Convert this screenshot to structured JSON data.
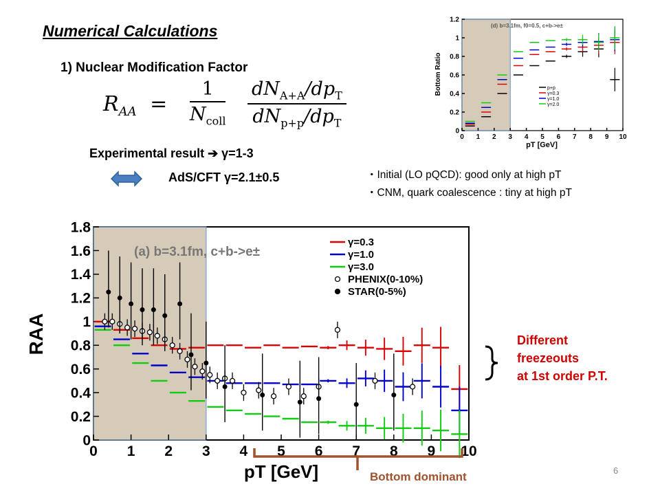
{
  "slide": {
    "title": "Numerical Calculations",
    "subtitle": "1) Nuclear Modification Factor",
    "formula": {
      "lhs": "R",
      "lhs_sub": "AA",
      "eq": "=",
      "frac1_num": "1",
      "frac1_den": "N",
      "frac1_den_sub": "coll",
      "frac2_num_a": "dN",
      "frac2_num_sub": "A+A",
      "frac2_num_b": "/dp",
      "frac2_num_b_sub": "T",
      "frac2_den_a": "dN",
      "frac2_den_sub": "p+p",
      "frac2_den_b": "/dp",
      "frac2_den_b_sub": "T"
    },
    "experimental": "Experimental result ➔ γ=1-3",
    "ads": "AdS/CFT γ=2.1±0.5",
    "bullets": [
      "・Initial (LO pQCD): good only at high pT",
      "・CNM, quark coalescence : tiny at high pT"
    ],
    "right_note": [
      "Different",
      "freezeouts",
      "at 1st order P.T."
    ],
    "bottom_note": "Bottom dominant",
    "page_number": "6",
    "colors": {
      "red": "#dd0000",
      "blue": "#0000cc",
      "green": "#11cc11",
      "brace": "#a0522d"
    }
  },
  "chart_data": [
    {
      "type": "line",
      "panel_label": "(a) b=3.1fm, c+b->e±",
      "xlabel": "pT [GeV]",
      "ylabel": "RAA",
      "xlim": [
        0,
        10
      ],
      "ylim": [
        0,
        1.8
      ],
      "xticks": [
        "0",
        "1",
        "2",
        "3",
        "4",
        "5",
        "6",
        "7",
        "8",
        "9",
        "10"
      ],
      "yticks": [
        "0",
        "0.2",
        "0.4",
        "0.6",
        "0.8",
        "1",
        "1.2",
        "1.4",
        "1.6",
        "1.8"
      ],
      "legend": [
        "γ=0.3",
        "γ=1.0",
        "γ=3.0",
        "PHENIX(0-10%)",
        "STAR(0-5%)"
      ],
      "series": [
        {
          "name": "γ=0.3",
          "color": "#dd0000",
          "x": [
            0.25,
            0.75,
            1.25,
            1.75,
            2.25,
            2.75,
            3.25,
            3.75,
            4.25,
            4.75,
            5.25,
            5.75,
            6.25,
            6.75,
            7.25,
            7.75,
            8.25,
            8.75,
            9.25,
            9.75
          ],
          "y": [
            1.0,
            0.93,
            0.86,
            0.8,
            0.77,
            0.78,
            0.8,
            0.8,
            0.78,
            0.8,
            0.78,
            0.79,
            0.78,
            0.8,
            0.78,
            0.77,
            0.75,
            0.8,
            0.78,
            0.43
          ]
        },
        {
          "name": "γ=1.0",
          "color": "#0000cc",
          "x": [
            0.25,
            0.75,
            1.25,
            1.75,
            2.25,
            2.75,
            3.25,
            3.75,
            4.25,
            4.75,
            5.25,
            5.75,
            6.25,
            6.75,
            7.25,
            7.75,
            8.25,
            8.75,
            9.25,
            9.75
          ],
          "y": [
            0.96,
            0.85,
            0.73,
            0.63,
            0.57,
            0.53,
            0.5,
            0.48,
            0.48,
            0.48,
            0.47,
            0.47,
            0.5,
            0.48,
            0.52,
            0.5,
            0.45,
            0.5,
            0.45,
            0.25
          ]
        },
        {
          "name": "γ=3.0",
          "color": "#11cc11",
          "x": [
            0.25,
            0.75,
            1.25,
            1.75,
            2.25,
            2.75,
            3.25,
            3.75,
            4.25,
            4.75,
            5.25,
            5.75,
            6.25,
            6.75,
            7.25,
            7.75,
            8.25,
            8.75,
            9.25,
            9.75
          ],
          "y": [
            0.93,
            0.8,
            0.65,
            0.5,
            0.4,
            0.33,
            0.28,
            0.25,
            0.22,
            0.2,
            0.18,
            0.15,
            0.15,
            0.12,
            0.12,
            0.1,
            0.1,
            0.1,
            0.08,
            0.05
          ]
        }
      ],
      "phenix": {
        "x": [
          0.3,
          0.5,
          0.7,
          0.9,
          1.1,
          1.3,
          1.5,
          1.7,
          1.9,
          2.1,
          2.3,
          2.5,
          2.7,
          2.9,
          3.1,
          3.3,
          3.5,
          3.7,
          4.0,
          4.4,
          4.8,
          5.2,
          5.6,
          6.0,
          6.5,
          7.5,
          8.5
        ],
        "y": [
          1.0,
          1.0,
          0.98,
          0.95,
          0.94,
          0.92,
          0.91,
          0.88,
          0.85,
          0.8,
          0.75,
          0.68,
          0.62,
          0.58,
          0.55,
          0.5,
          0.52,
          0.5,
          0.4,
          0.42,
          0.37,
          0.45,
          0.37,
          0.45,
          0.93,
          0.5,
          0.45
        ]
      },
      "star": {
        "x": [
          0.4,
          0.7,
          1.0,
          1.3,
          1.6,
          1.9,
          2.3,
          2.6,
          3.0,
          3.5,
          4.5,
          5.5,
          6.0,
          7.0,
          8.0
        ],
        "y": [
          1.25,
          1.2,
          1.15,
          1.1,
          1.1,
          1.05,
          1.15,
          0.72,
          0.65,
          0.45,
          0.38,
          0.32,
          0.35,
          0.3,
          0.38
        ]
      }
    },
    {
      "type": "line",
      "panel_label": "(d) b=3.1fm, f0=0.5, c+b->e±",
      "xlabel": "pT [GeV]",
      "ylabel": "Bottom Ratio",
      "xlim": [
        0,
        10
      ],
      "ylim": [
        0,
        1.2
      ],
      "xticks": [
        "0",
        "1",
        "2",
        "3",
        "4",
        "5",
        "6",
        "7",
        "8",
        "9",
        "10"
      ],
      "yticks": [
        "0",
        "0.2",
        "0.4",
        "0.6",
        "0.8",
        "1",
        "1.2"
      ],
      "legend": [
        "p+p",
        "γ=0.3",
        "γ=1.0",
        "γ=2.0"
      ],
      "series": [
        {
          "name": "p+p",
          "color": "#000000",
          "x": [
            0.5,
            1.5,
            2.5,
            3.5,
            4.5,
            5.5,
            6.5,
            7.5,
            8.5,
            9.5
          ],
          "y": [
            0.05,
            0.15,
            0.4,
            0.6,
            0.7,
            0.75,
            0.8,
            0.85,
            0.88,
            0.55
          ]
        },
        {
          "name": "γ=0.3",
          "color": "#dd0000",
          "x": [
            0.5,
            1.5,
            2.5,
            3.5,
            4.5,
            5.5,
            6.5,
            7.5,
            8.5,
            9.5
          ],
          "y": [
            0.07,
            0.2,
            0.5,
            0.7,
            0.82,
            0.85,
            0.88,
            0.9,
            0.92,
            0.95
          ]
        },
        {
          "name": "γ=1.0",
          "color": "#0000cc",
          "x": [
            0.5,
            1.5,
            2.5,
            3.5,
            4.5,
            5.5,
            6.5,
            7.5,
            8.5,
            9.5
          ],
          "y": [
            0.08,
            0.25,
            0.55,
            0.78,
            0.87,
            0.9,
            0.93,
            0.95,
            0.96,
            0.98
          ]
        },
        {
          "name": "γ=2.0",
          "color": "#11cc11",
          "x": [
            0.5,
            1.5,
            2.5,
            3.5,
            4.5,
            5.5,
            6.5,
            7.5,
            8.5,
            9.5
          ],
          "y": [
            0.1,
            0.3,
            0.6,
            0.85,
            0.95,
            0.97,
            0.98,
            0.98,
            0.95,
            1.0
          ]
        }
      ]
    }
  ]
}
